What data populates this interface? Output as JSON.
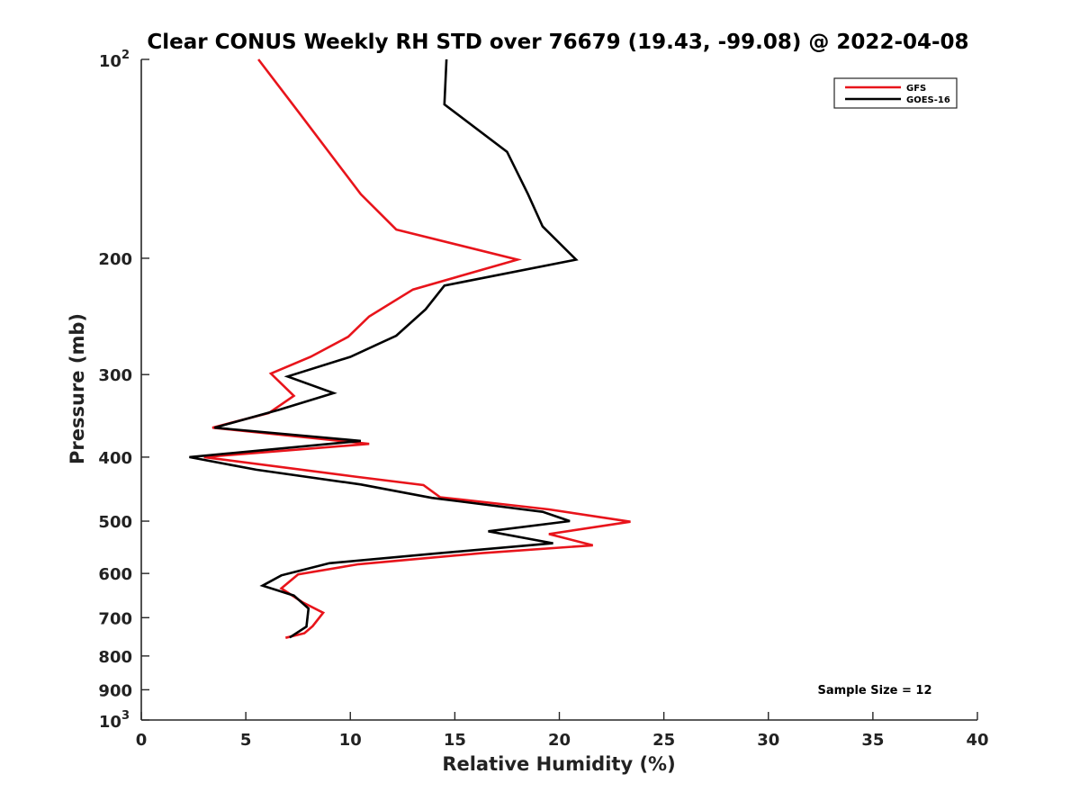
{
  "chart_data": {
    "type": "line",
    "title": "Clear CONUS Weekly RH STD over 76679 (19.43, -99.08) @ 2022-04-08",
    "xlabel": "Relative Humidity (%)",
    "ylabel": "Pressure (mb)",
    "xlim": [
      0,
      40
    ],
    "ylim": [
      100,
      1000
    ],
    "yscale": "log",
    "y_reversed": true,
    "grid": false,
    "legend_position": "top-right",
    "x_ticks": [
      "0",
      "5",
      "10",
      "15",
      "20",
      "25",
      "30",
      "35",
      "40"
    ],
    "y_ticks": [
      {
        "value": 200,
        "label": "200"
      },
      {
        "value": 300,
        "label": "300"
      },
      {
        "value": 400,
        "label": "400"
      },
      {
        "value": 500,
        "label": "500"
      },
      {
        "value": 600,
        "label": "600"
      },
      {
        "value": 700,
        "label": "700"
      },
      {
        "value": 800,
        "label": "800"
      },
      {
        "value": 900,
        "label": "900"
      }
    ],
    "y_tick_power": {
      "base": "10",
      "top_exponent": "2",
      "bottom_exponent": "3"
    },
    "annotation": "Sample Size = 12",
    "series": [
      {
        "name": "GFS",
        "color": "#e8141b",
        "points": [
          [
            5.6,
            100
          ],
          [
            7.6,
            121
          ],
          [
            10.5,
            160
          ],
          [
            12.2,
            181
          ],
          [
            18.0,
            201
          ],
          [
            13.0,
            223
          ],
          [
            10.9,
            245
          ],
          [
            9.9,
            263
          ],
          [
            8.1,
            282
          ],
          [
            6.2,
            299
          ],
          [
            7.3,
            323
          ],
          [
            6.1,
            343
          ],
          [
            3.4,
            361
          ],
          [
            10.9,
            382
          ],
          [
            3.0,
            400
          ],
          [
            10.2,
            428
          ],
          [
            13.5,
            441
          ],
          [
            14.3,
            460
          ],
          [
            19.5,
            480
          ],
          [
            23.4,
            501
          ],
          [
            19.5,
            523
          ],
          [
            21.6,
            544
          ],
          [
            16.3,
            559
          ],
          [
            10.4,
            581
          ],
          [
            7.5,
            602
          ],
          [
            6.7,
            632
          ],
          [
            7.7,
            663
          ],
          [
            8.7,
            688
          ],
          [
            8.2,
            721
          ],
          [
            7.8,
            739
          ],
          [
            6.9,
            751
          ]
        ]
      },
      {
        "name": "GOES-16",
        "color": "#000000",
        "points": [
          [
            14.6,
            100
          ],
          [
            14.5,
            117
          ],
          [
            17.5,
            138
          ],
          [
            18.5,
            160
          ],
          [
            19.2,
            179
          ],
          [
            20.8,
            201
          ],
          [
            14.5,
            220
          ],
          [
            13.6,
            239
          ],
          [
            12.2,
            262
          ],
          [
            10.0,
            282
          ],
          [
            7.0,
            302
          ],
          [
            9.2,
            320
          ],
          [
            6.6,
            339
          ],
          [
            3.5,
            361
          ],
          [
            10.5,
            378
          ],
          [
            2.3,
            400
          ],
          [
            5.5,
            418
          ],
          [
            10.5,
            440
          ],
          [
            13.9,
            461
          ],
          [
            19.2,
            484
          ],
          [
            20.5,
            500
          ],
          [
            16.6,
            518
          ],
          [
            19.7,
            540
          ],
          [
            14.0,
            560
          ],
          [
            9.0,
            579
          ],
          [
            6.7,
            604
          ],
          [
            5.8,
            626
          ],
          [
            7.3,
            648
          ],
          [
            8.0,
            678
          ],
          [
            7.9,
            722
          ],
          [
            7.1,
            750
          ]
        ]
      }
    ]
  }
}
